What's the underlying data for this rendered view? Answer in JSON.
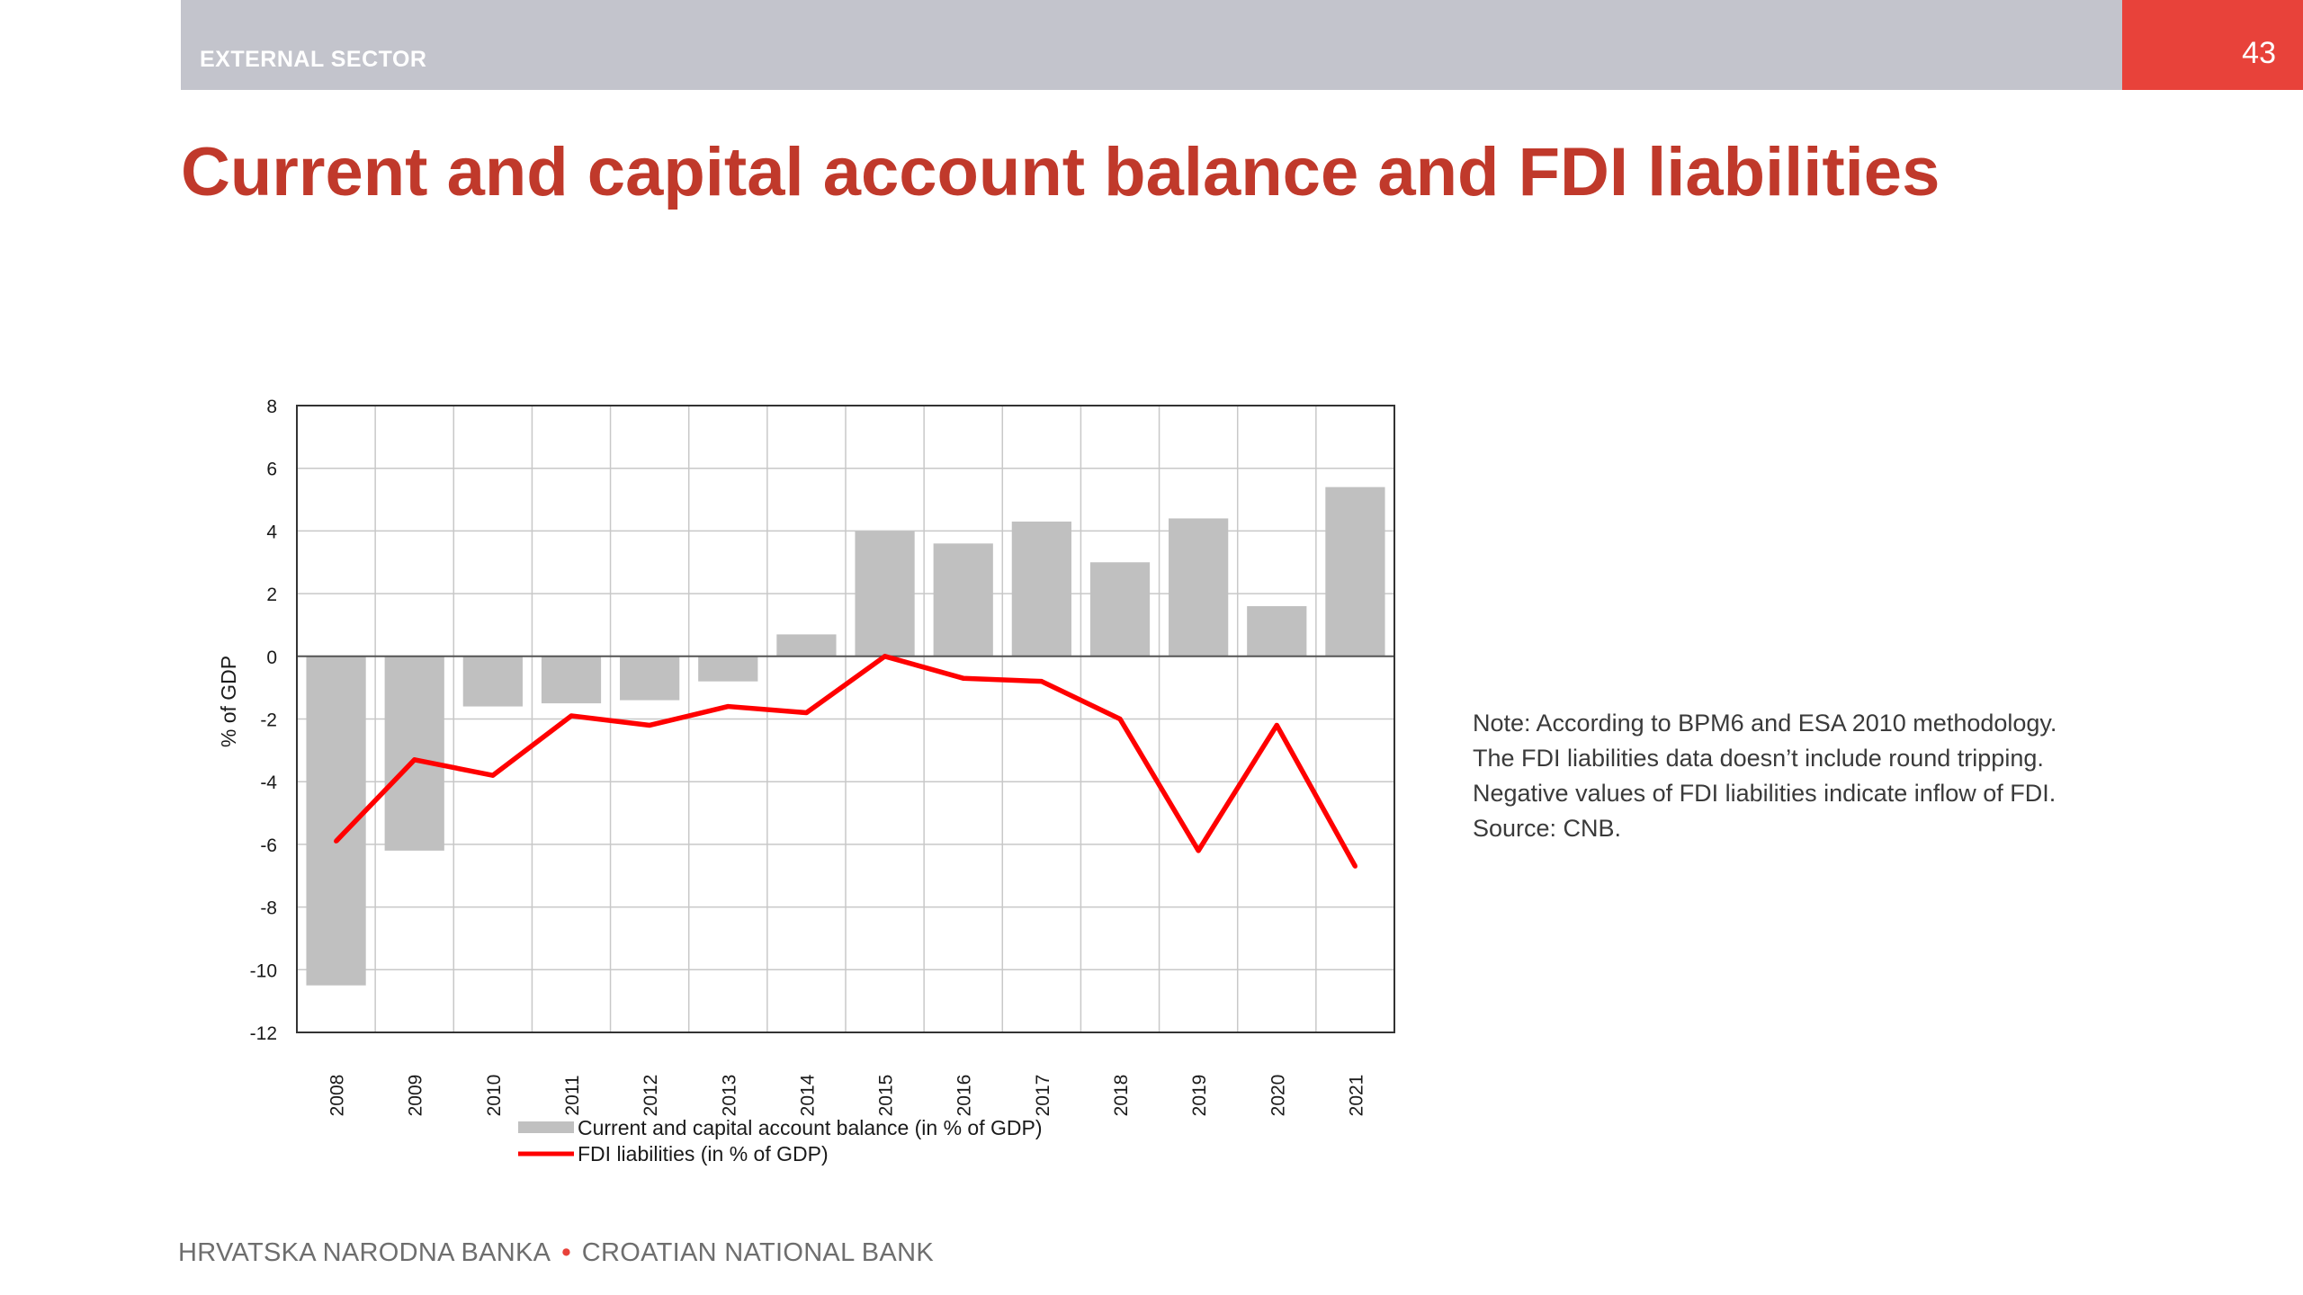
{
  "header": {
    "section": "EXTERNAL SECTOR",
    "page_number": "43",
    "accent_color": "#e8423a",
    "bar_color": "#c3c4cc"
  },
  "title": "Current and capital account balance and FDI liabilities",
  "chart_data": {
    "type": "bar",
    "categories": [
      "2008",
      "2009",
      "2010",
      "2011",
      "2012",
      "2013",
      "2014",
      "2015",
      "2016",
      "2017",
      "2018",
      "2019",
      "2020",
      "2021"
    ],
    "series": [
      {
        "name": "Current and capital account balance (in % of GDP)",
        "type": "bar",
        "color": "#c0c0c0",
        "values": [
          -10.5,
          -6.2,
          -1.6,
          -1.5,
          -1.4,
          -0.8,
          0.7,
          4.0,
          3.6,
          4.3,
          3.0,
          4.4,
          1.6,
          5.4
        ]
      },
      {
        "name": "FDI liabilities (in % of GDP)",
        "type": "line",
        "color": "#ff0000",
        "values": [
          -5.9,
          -3.3,
          -3.8,
          -1.9,
          -2.2,
          -1.6,
          -1.8,
          0.0,
          -0.7,
          -0.8,
          -2.0,
          -6.2,
          -2.2,
          -6.7
        ]
      }
    ],
    "ylabel": "% of GDP",
    "xlabel": "",
    "ylim": [
      -12,
      8
    ],
    "yticks": [
      "8",
      "6",
      "4",
      "2",
      "0",
      "-2",
      "-4",
      "-6",
      "-8",
      "-10",
      "-12"
    ],
    "grid": true,
    "legend_position": "bottom-center"
  },
  "note": {
    "lines": [
      "Note: According to BPM6 and ESA 2010 methodology.",
      "The FDI liabilities data doesn’t include round tripping.",
      "Negative values of FDI liabilities indicate inflow of FDI.",
      "Source: CNB."
    ]
  },
  "footer": {
    "left": "HRVATSKA NARODNA BANKA",
    "separator": "•",
    "right": "CROATIAN NATIONAL BANK"
  }
}
